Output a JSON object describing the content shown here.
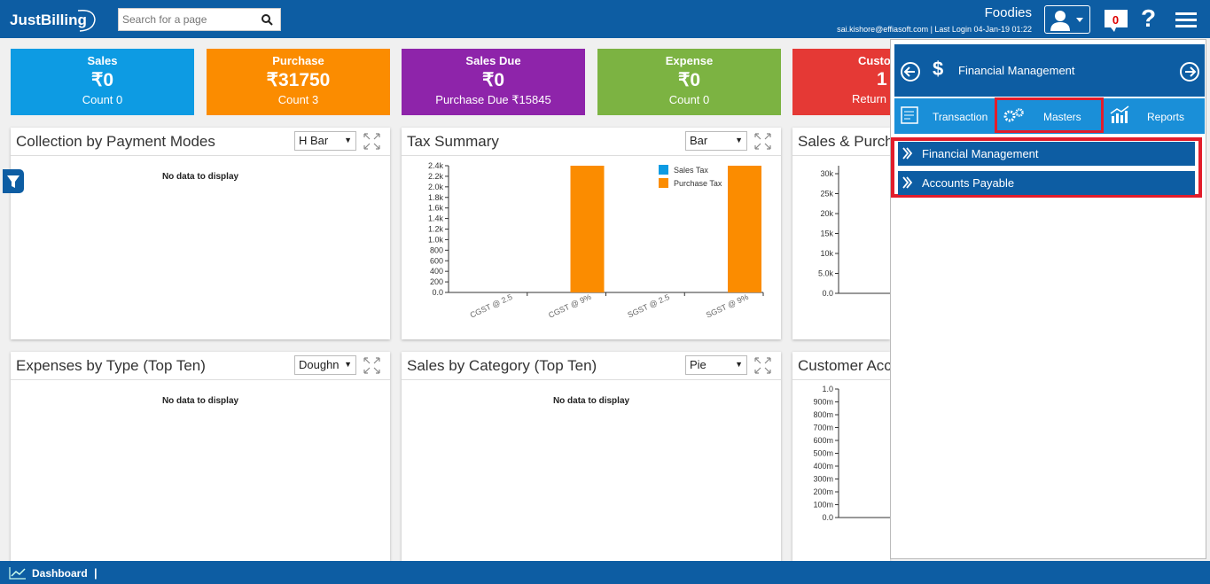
{
  "topbar": {
    "logo_text": "JustBilling",
    "search_placeholder": "Search for a page",
    "company": "Foodies",
    "user_line": "sai.kishore@effiasoft.com | Last Login 04-Jan-19 01:22",
    "notification_count": "0",
    "help_label": "?"
  },
  "kpis": [
    {
      "title": "Sales",
      "value": "₹0",
      "sub": "Count 0",
      "color": "#0d9be3"
    },
    {
      "title": "Purchase",
      "value": "₹31750",
      "sub": "Count 3",
      "color": "#fb8c00"
    },
    {
      "title": "Sales Due",
      "value": "₹0",
      "sub": "Purchase Due ₹15845",
      "color": "#8e24aa"
    },
    {
      "title": "Expense",
      "value": "₹0",
      "sub": "Count 0",
      "color": "#7cb342"
    },
    {
      "title": "Custo",
      "value": "1",
      "sub": "Return",
      "color": "#e53935"
    }
  ],
  "panels": {
    "collection": {
      "title": "Collection by Payment Modes",
      "select": "H Bar",
      "nodata": "No data to display"
    },
    "tax": {
      "title": "Tax Summary",
      "select": "Bar"
    },
    "salespurch": {
      "title": "Sales & Purch"
    },
    "expenses": {
      "title": "Expenses by Type (Top Ten)",
      "select": "Doughn",
      "nodata": "No data to display"
    },
    "category": {
      "title": "Sales by Category (Top Ten)",
      "select": "Pie",
      "nodata": "No data to display"
    },
    "customer": {
      "title": "Customer Acc"
    }
  },
  "right_panel": {
    "header_title": "Financial Management",
    "tabs": [
      {
        "label": "Transaction"
      },
      {
        "label": "Masters"
      },
      {
        "label": "Reports"
      }
    ],
    "menu_items": [
      {
        "label": "Financial Management"
      },
      {
        "label": "Accounts Payable"
      }
    ]
  },
  "bottombar": {
    "label": "Dashboard",
    "separator": "|"
  },
  "colors": {
    "primary": "#0d5da3",
    "highlight": "#e21d2b",
    "tab_bar": "#1a8fd8"
  },
  "chart_data": [
    {
      "type": "bar",
      "title": "Tax Summary",
      "categories": [
        "CGST @ 2.5",
        "CGST @ 9%",
        "SGST @ 2.5",
        "SGST @ 9%"
      ],
      "series": [
        {
          "name": "Sales Tax",
          "values": [
            0,
            0,
            0,
            0
          ],
          "color": "#0d9be3"
        },
        {
          "name": "Purchase Tax",
          "values": [
            0,
            2400,
            0,
            2400
          ],
          "color": "#fb8c00"
        }
      ],
      "ylim": [
        0,
        2400
      ],
      "yticks": [
        "0.0",
        "200",
        "400",
        "600",
        "800",
        "1.0k",
        "1.2k",
        "1.4k",
        "1.6k",
        "1.8k",
        "2.0k",
        "2.2k",
        "2.4k"
      ],
      "legend": "top-right"
    },
    {
      "type": "bar",
      "title": "Sales & Purch",
      "ylim": [
        0,
        32000
      ],
      "yticks": [
        "0.0",
        "5.0k",
        "10k",
        "15k",
        "20k",
        "25k",
        "30k"
      ],
      "series": []
    },
    {
      "type": "line",
      "title": "Customer Acc",
      "ylim": [
        0,
        1.0
      ],
      "yticks": [
        "0.0",
        "100m",
        "200m",
        "300m",
        "400m",
        "500m",
        "600m",
        "700m",
        "800m",
        "900m",
        "1.0"
      ],
      "series": []
    }
  ]
}
